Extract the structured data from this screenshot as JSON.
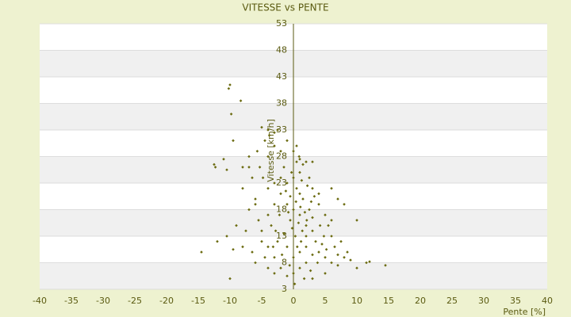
{
  "chart_data": {
    "type": "scatter",
    "title": "VITESSE vs PENTE",
    "x_label": "Pente [%]",
    "y_label": "Vitesse [km/h]",
    "color": "#6b6b10",
    "xlim": [
      -40,
      40
    ],
    "xticks": [
      -40,
      -35,
      -30,
      -25,
      -20,
      -15,
      -10,
      -5,
      0,
      5,
      10,
      15,
      20,
      25,
      30,
      35,
      40
    ],
    "ylim": [
      3,
      53
    ],
    "yticks": [
      3,
      8,
      13,
      18,
      23,
      28,
      33,
      38,
      43,
      48,
      53
    ],
    "x": [
      0,
      1,
      -1,
      2,
      -2,
      0.5,
      1.5,
      3,
      -0.5,
      2.5,
      0,
      1,
      -1,
      0.3,
      1.2,
      2,
      3.5,
      4,
      5,
      4.5,
      3,
      2,
      1,
      0,
      -1,
      -2,
      -3,
      -2.5,
      -3.5,
      -4,
      -3,
      -2,
      -3,
      -4,
      -1.5,
      0.5,
      1.5,
      2.5,
      3,
      4,
      5,
      5.5,
      6,
      6.5,
      7,
      7.5,
      6,
      4,
      3,
      2,
      1,
      0,
      -1,
      -1.5,
      -0.5,
      0.8,
      1.8,
      2.8,
      -2.2,
      -2.8,
      -3.2,
      -4.5,
      -5,
      -5.5,
      -6,
      -4.8,
      -5.3,
      -4,
      -3,
      -2,
      -1,
      -4.5,
      -3.8,
      0,
      0.5,
      1,
      1.3,
      2.2,
      3.3,
      4.2,
      4.8,
      5.2,
      3.8,
      2.7,
      1.7,
      0.2,
      -0.6,
      -1.8,
      0.6,
      1.4,
      -0.2,
      -0.8,
      0.4,
      1.1,
      2.1,
      -1.2,
      -0.3,
      0.9,
      2,
      8.5,
      9,
      7,
      6,
      5,
      3,
      -3,
      -4,
      -6.5,
      -7.5,
      -8,
      -6.5,
      -7,
      -5.7,
      -10,
      -10.2,
      -9.8,
      -8.3,
      -9.5,
      -12.5,
      -12.3,
      -10.5,
      -11,
      -14.5,
      -12,
      -10,
      -10.5,
      -9.5,
      -6,
      -4,
      -5,
      -4,
      -3,
      -2.5,
      10,
      11.5,
      14.5,
      12,
      10,
      8,
      7,
      8,
      6,
      3,
      1,
      -7,
      -8,
      -6,
      -7,
      -9,
      -8,
      -5
    ],
    "values": [
      18,
      17,
      19,
      15,
      21,
      22,
      20,
      14,
      16,
      18,
      24,
      25,
      23,
      13,
      12,
      11,
      12,
      10,
      9,
      11.5,
      9.5,
      8,
      7,
      6,
      5.5,
      7,
      9,
      12,
      15,
      17,
      19,
      24,
      23,
      22,
      26,
      27,
      26.5,
      24,
      22,
      19,
      17,
      15,
      13,
      11,
      9.5,
      12,
      16,
      21,
      16.5,
      13,
      10,
      9,
      11,
      13.5,
      20.5,
      15.5,
      17.5,
      19.5,
      17,
      14,
      11,
      9,
      12,
      16,
      19,
      24,
      26,
      28,
      30,
      29,
      31,
      31,
      32,
      29,
      30,
      21,
      23.5,
      22.5,
      20.5,
      15,
      13,
      10.5,
      8,
      6.5,
      5,
      4,
      7.5,
      9.5,
      11,
      14,
      14.5,
      17.5,
      19.5,
      18.5,
      16,
      21.5,
      25,
      28,
      27,
      10,
      8.5,
      7.5,
      8,
      6,
      5,
      6,
      7,
      10,
      14,
      22,
      24,
      26,
      29,
      41.5,
      40.8,
      36,
      38.5,
      31,
      26.5,
      26,
      25.5,
      27.5,
      10,
      12,
      5,
      13,
      10.5,
      8,
      11,
      33.5,
      33,
      32.5,
      33,
      16,
      8,
      7.5,
      8.2,
      7,
      9,
      20,
      19,
      22,
      27,
      27.5,
      28,
      26,
      20,
      18,
      15,
      11,
      14
    ]
  }
}
